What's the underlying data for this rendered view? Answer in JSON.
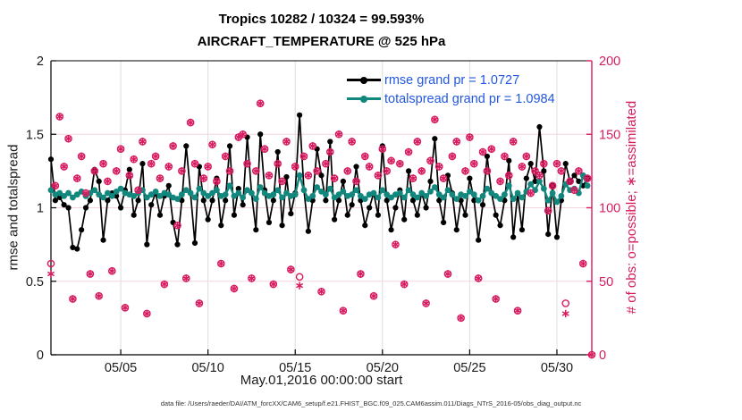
{
  "figure": {
    "title_line1": "Tropics 10282 / 10324 = 99.593%",
    "title_line2": "AIRCRAFT_TEMPERATURE @ 525 hPa",
    "footer_datafile": "data file: /Users/raeder/DAI/ATM_forcXX/CAM6_setup/f.e21.FHIST_BGC.f09_025.CAM6assim.011/Diags_NTrS_2016-05/obs_diag_output.nc"
  },
  "chart_data": {
    "type": "line",
    "title": "Tropics 10282 / 10324 = 99.593% | AIRCRAFT_TEMPERATURE @ 525 hPa",
    "xlabel": "May.01,2016 00:00:00 start",
    "ylabel_left": "rmse and totalspread",
    "ylabel_right": "# of obs: o=possible; ∗=assimilated",
    "x_tick_labels": [
      "05/05",
      "05/10",
      "05/15",
      "05/20",
      "05/25",
      "05/30"
    ],
    "x_tick_days": [
      4,
      9,
      14,
      19,
      24,
      29
    ],
    "x_range_days": [
      0,
      31
    ],
    "time_step_days": 0.25,
    "ylim_left": [
      0,
      2
    ],
    "y_ticks_left": [
      "0",
      "0.5",
      "1",
      "1.5",
      "2"
    ],
    "y_tick_values_left": [
      0,
      0.5,
      1,
      1.5,
      2
    ],
    "ylim_right": [
      0,
      200
    ],
    "y_ticks_right": [
      "0",
      "50",
      "100",
      "150",
      "200"
    ],
    "y_tick_values_right": [
      0,
      50,
      100,
      150,
      200
    ],
    "grid": "on",
    "legend_position": "top-right-inside",
    "legend_text_color": "#2257e0",
    "axis_color_left": "#000000",
    "axis_color_right": "#d81b60",
    "grid_color_vertical": "#dedede",
    "grid_color_horizontal": "#f6d3de",
    "series": [
      {
        "name": "rmse",
        "legend": "rmse grand pr = 1.0727",
        "grand_pr": 1.0727,
        "color": "#000000",
        "marker": "filled-circle",
        "values": [
          1.33,
          1.05,
          1.07,
          1.02,
          1.0,
          0.73,
          0.72,
          0.85,
          1.0,
          1.05,
          1.26,
          1.18,
          0.78,
          1.05,
          1.1,
          1.08,
          1.0,
          1.12,
          1.26,
          0.95,
          1.05,
          1.3,
          0.75,
          1.02,
          1.1,
          0.95,
          1.08,
          1.15,
          0.9,
          0.75,
          1.05,
          1.42,
          1.1,
          0.76,
          1.28,
          1.05,
          0.92,
          1.05,
          1.2,
          0.88,
          1.05,
          1.42,
          0.95,
          1.13,
          1.02,
          1.48,
          1.1,
          0.85,
          1.5,
          1.12,
          0.9,
          1.05,
          1.38,
          0.88,
          1.21,
          0.96,
          1.1,
          1.63,
          1.12,
          0.84,
          1.05,
          1.4,
          1.22,
          1.05,
          1.45,
          0.92,
          1.05,
          1.18,
          0.95,
          1.02,
          1.28,
          1.05,
          0.88,
          1.0,
          1.1,
          0.95,
          1.42,
          1.05,
          0.85,
          1.0,
          1.12,
          0.92,
          1.25,
          1.05,
          0.95,
          1.1,
          1.0,
          1.18,
          1.47,
          1.05,
          0.9,
          1.22,
          1.1,
          0.85,
          1.05,
          0.95,
          1.2,
          1.05,
          0.78,
          1.02,
          1.35,
          1.1,
          0.95,
          0.88,
          1.05,
          1.32,
          0.8,
          1.1,
          0.85,
          1.2,
          1.3,
          1.18,
          1.55,
          1.25,
          0.82,
          1.15,
          0.8,
          1.05,
          1.3,
          1.18,
          1.22,
          1.18,
          1.15,
          1.2
        ]
      },
      {
        "name": "totalspread",
        "legend": "totalspread grand pr = 1.0984",
        "grand_pr": 1.0984,
        "color": "#11877d",
        "marker": "filled-circle",
        "values": [
          1.12,
          1.09,
          1.1,
          1.08,
          1.1,
          1.07,
          1.09,
          1.11,
          1.08,
          1.1,
          1.12,
          1.09,
          1.07,
          1.1,
          1.08,
          1.11,
          1.13,
          1.1,
          1.09,
          1.08,
          1.1,
          1.12,
          1.07,
          1.09,
          1.11,
          1.08,
          1.1,
          1.09,
          1.07,
          1.06,
          1.09,
          1.12,
          1.1,
          1.07,
          1.13,
          1.1,
          1.08,
          1.1,
          1.12,
          1.08,
          1.09,
          1.15,
          1.08,
          1.1,
          1.07,
          1.12,
          1.1,
          1.06,
          1.14,
          1.1,
          1.08,
          1.09,
          1.12,
          1.07,
          1.1,
          1.08,
          1.09,
          1.22,
          1.12,
          1.06,
          1.08,
          1.14,
          1.11,
          1.09,
          1.13,
          1.07,
          1.09,
          1.11,
          1.08,
          1.09,
          1.12,
          1.08,
          1.06,
          1.09,
          1.1,
          1.07,
          1.12,
          1.09,
          1.07,
          1.09,
          1.1,
          1.07,
          1.12,
          1.09,
          1.07,
          1.1,
          1.08,
          1.11,
          1.14,
          1.09,
          1.07,
          1.12,
          1.09,
          1.06,
          1.09,
          1.08,
          1.11,
          1.09,
          1.05,
          1.08,
          1.13,
          1.1,
          1.08,
          1.06,
          1.09,
          1.15,
          1.06,
          1.1,
          1.07,
          1.11,
          1.16,
          1.12,
          1.18,
          1.13,
          1.05,
          1.1,
          1.04,
          1.08,
          1.16,
          1.12,
          1.13,
          1.1,
          1.22,
          1.15
        ]
      }
    ],
    "obs_counts": {
      "color": "#d81b60",
      "marker_possible": "circle-outline",
      "marker_assimilated": "asterisk",
      "possible": [
        62,
        115,
        162,
        128,
        147,
        38,
        120,
        135,
        110,
        55,
        125,
        40,
        130,
        118,
        57,
        125,
        140,
        32,
        122,
        133,
        112,
        145,
        28,
        130,
        135,
        120,
        48,
        128,
        142,
        88,
        125,
        52,
        158,
        130,
        35,
        120,
        128,
        143,
        118,
        62,
        135,
        125,
        45,
        148,
        150,
        130,
        52,
        125,
        171,
        140,
        122,
        48,
        130,
        118,
        145,
        58,
        128,
        53,
        135,
        122,
        142,
        125,
        43,
        130,
        138,
        120,
        150,
        30,
        125,
        145,
        118,
        55,
        135,
        128,
        40,
        122,
        140,
        125,
        132,
        75,
        130,
        48,
        138,
        120,
        145,
        125,
        35,
        132,
        160,
        128,
        120,
        55,
        135,
        145,
        25,
        125,
        148,
        130,
        52,
        138,
        125,
        140,
        38,
        118,
        135,
        122,
        145,
        30,
        128,
        135,
        110,
        125,
        122,
        130,
        98,
        115,
        130,
        125,
        35,
        118,
        112,
        125,
        62,
        120,
        0
      ],
      "assimilated": [
        55,
        115,
        162,
        128,
        147,
        38,
        120,
        135,
        110,
        55,
        125,
        40,
        130,
        118,
        57,
        125,
        140,
        32,
        122,
        133,
        112,
        145,
        28,
        130,
        135,
        120,
        48,
        128,
        142,
        88,
        125,
        52,
        158,
        130,
        35,
        120,
        128,
        143,
        118,
        62,
        135,
        125,
        45,
        148,
        150,
        130,
        52,
        125,
        171,
        140,
        122,
        48,
        130,
        118,
        145,
        58,
        128,
        47,
        135,
        122,
        142,
        125,
        43,
        130,
        138,
        120,
        150,
        30,
        125,
        145,
        118,
        55,
        135,
        128,
        40,
        122,
        140,
        125,
        132,
        75,
        130,
        48,
        138,
        120,
        145,
        125,
        35,
        132,
        160,
        128,
        120,
        55,
        135,
        145,
        25,
        125,
        148,
        130,
        52,
        138,
        125,
        140,
        38,
        118,
        135,
        122,
        145,
        30,
        128,
        135,
        110,
        125,
        122,
        130,
        98,
        115,
        130,
        125,
        28,
        118,
        112,
        125,
        62,
        120,
        0
      ]
    }
  }
}
